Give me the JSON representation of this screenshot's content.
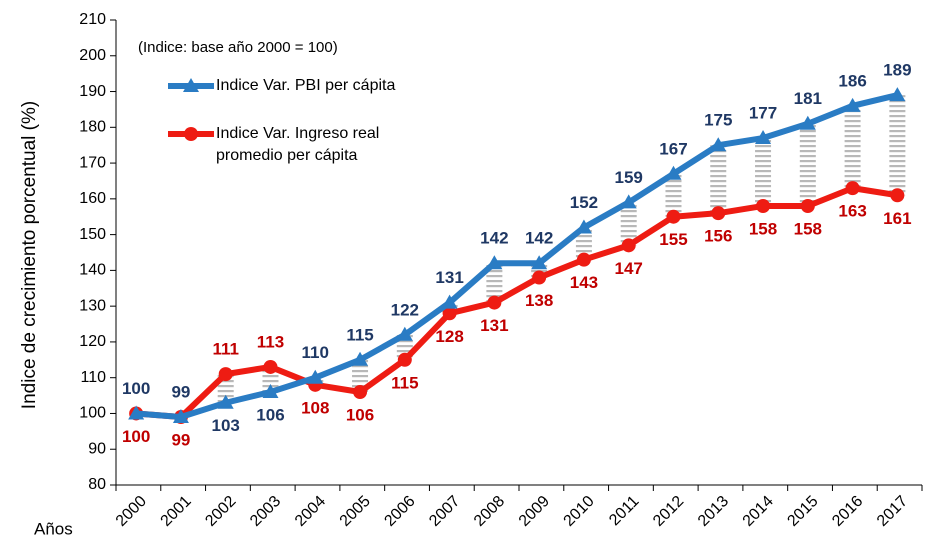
{
  "chart_data": {
    "type": "line",
    "y_label": "Indice de crecimiento porcentual (%)",
    "x_label": "Años",
    "annotation": "(Indice: base año 2000 = 100)",
    "categories": [
      "2000",
      "2001",
      "2002",
      "2003",
      "2004",
      "2005",
      "2006",
      "2007",
      "2008",
      "2009",
      "2010",
      "2011",
      "2012",
      "2013",
      "2014",
      "2015",
      "2016",
      "2017"
    ],
    "series": [
      {
        "name": "Indice Var. PBI per cápita",
        "color": "#2a7cc4",
        "label_color": "#1f3864",
        "marker": "triangle",
        "values": [
          100,
          99,
          103,
          106,
          110,
          115,
          122,
          131,
          142,
          142,
          152,
          159,
          167,
          175,
          177,
          181,
          186,
          189
        ]
      },
      {
        "name": "Indice Var. Ingreso real promedio per cápita",
        "color": "#ee1c13",
        "label_color": "#c00000",
        "marker": "circle",
        "values": [
          100,
          99,
          111,
          113,
          108,
          106,
          115,
          128,
          131,
          138,
          143,
          147,
          155,
          156,
          158,
          158,
          163,
          161
        ]
      }
    ],
    "ylim": [
      80,
      210
    ],
    "yticks": [
      80,
      90,
      100,
      110,
      120,
      130,
      140,
      150,
      160,
      170,
      180,
      190,
      200,
      210
    ]
  }
}
